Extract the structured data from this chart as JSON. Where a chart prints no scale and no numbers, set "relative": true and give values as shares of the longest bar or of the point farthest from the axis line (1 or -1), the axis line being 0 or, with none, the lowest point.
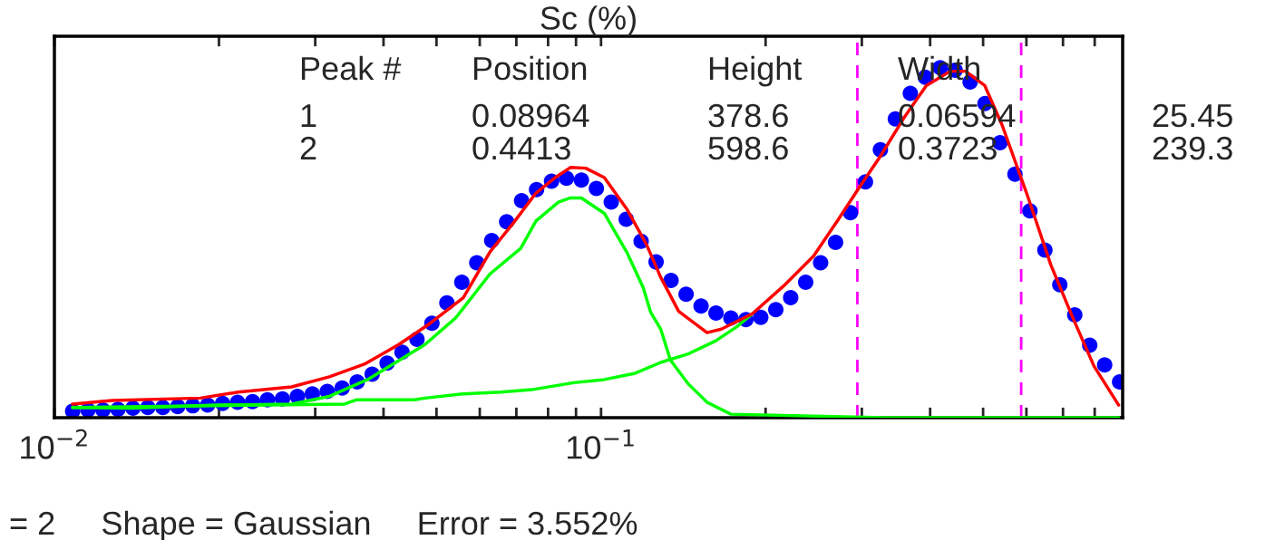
{
  "chart_data": {
    "type": "scatter",
    "title": "Sc (%)",
    "relative": true,
    "log": "x",
    "grid": false,
    "legend": false,
    "xlim": [
      0.01,
      0.9
    ],
    "xticks": [
      {
        "value": 0.01,
        "label": "10$^{−2}$"
      },
      {
        "value": 0.02,
        "label": null
      },
      {
        "value": 0.03,
        "label": null
      },
      {
        "value": 0.04,
        "label": null
      },
      {
        "value": 0.05,
        "label": null
      },
      {
        "value": 0.06,
        "label": null
      },
      {
        "value": 0.07,
        "label": null
      },
      {
        "value": 0.08,
        "label": null
      },
      {
        "value": 0.09,
        "label": null
      },
      {
        "value": 0.1,
        "label": "10$^{−1}$"
      },
      {
        "value": 0.2,
        "label": null
      },
      {
        "value": 0.3,
        "label": null
      },
      {
        "value": 0.4,
        "label": null
      },
      {
        "value": 0.5,
        "label": null
      },
      {
        "value": 0.6,
        "label": null
      },
      {
        "value": 0.7,
        "label": null
      },
      {
        "value": 0.8,
        "label": null
      }
    ],
    "series": [
      {
        "color": "#0000ff",
        "marker": "circle",
        "x": [
          0.0108,
          0.01152,
          0.01227,
          0.01307,
          0.01392,
          0.01482,
          0.01579,
          0.01681,
          0.01791,
          0.01907,
          0.02031,
          0.02163,
          0.02304,
          0.02453,
          0.02613,
          0.02783,
          0.02964,
          0.03156,
          0.03361,
          0.0358,
          0.03813,
          0.04061,
          0.04325,
          0.04606,
          0.04905,
          0.05224,
          0.05563,
          0.05925,
          0.0631,
          0.0672,
          0.07157,
          0.07622,
          0.08118,
          0.08645,
          0.09207,
          0.09806,
          0.1044,
          0.1112,
          0.1184,
          0.1261,
          0.1343,
          0.1431,
          0.1524,
          0.1623,
          0.1728,
          0.1841,
          0.196,
          0.2088,
          0.2223,
          0.2368,
          0.2522,
          0.2686,
          0.286,
          0.3046,
          0.3244,
          0.3455,
          0.368,
          0.3919,
          0.4173,
          0.4445,
          0.4734,
          0.5041,
          0.5369,
          0.5718,
          0.609,
          0.6486,
          0.6907,
          0.7356,
          0.7834,
          0.8343,
          0.8886
        ],
        "values": [
          0.019,
          0.022,
          0.022,
          0.024,
          0.027,
          0.029,
          0.029,
          0.032,
          0.034,
          0.036,
          0.041,
          0.044,
          0.046,
          0.051,
          0.054,
          0.061,
          0.068,
          0.075,
          0.085,
          0.102,
          0.124,
          0.156,
          0.187,
          0.224,
          0.27,
          0.328,
          0.387,
          0.443,
          0.506,
          0.56,
          0.62,
          0.652,
          0.676,
          0.684,
          0.679,
          0.655,
          0.616,
          0.567,
          0.504,
          0.445,
          0.392,
          0.353,
          0.319,
          0.299,
          0.285,
          0.28,
          0.287,
          0.309,
          0.343,
          0.387,
          0.443,
          0.501,
          0.586,
          0.674,
          0.766,
          0.854,
          0.927,
          0.973,
          1.0,
          0.993,
          0.959,
          0.898,
          0.786,
          0.696,
          0.591,
          0.479,
          0.38,
          0.294,
          0.207,
          0.151,
          0.102
        ]
      },
      {
        "type": "line",
        "color": "#00ff00",
        "x": [
          0.01079,
          0.01384,
          0.01972,
          0.02716,
          0.03184,
          0.03741,
          0.04764,
          0.0542,
          0.06266,
          0.07129,
          0.07603,
          0.08356,
          0.0879,
          0.09204,
          0.1014,
          0.1117,
          0.1194,
          0.1232,
          0.1286,
          0.1339,
          0.1443,
          0.1563,
          0.1728,
          0.33,
          0.885
        ],
        "values": [
          0.029,
          0.027,
          0.036,
          0.039,
          0.061,
          0.109,
          0.209,
          0.285,
          0.411,
          0.484,
          0.562,
          0.616,
          0.628,
          0.628,
          0.584,
          0.47,
          0.372,
          0.302,
          0.253,
          0.165,
          0.097,
          0.044,
          0.01,
          0.0,
          0.0
        ]
      },
      {
        "type": "line",
        "color": "#00ff00",
        "x": [
          0.01079,
          0.03396,
          0.03565,
          0.0455,
          0.04764,
          0.05598,
          0.06561,
          0.07464,
          0.08913,
          0.1014,
          0.1155,
          0.1286,
          0.1443,
          0.1619,
          0.1772,
          0.1892
        ],
        "values": [
          0.029,
          0.039,
          0.051,
          0.051,
          0.056,
          0.068,
          0.073,
          0.08,
          0.1,
          0.109,
          0.127,
          0.158,
          0.182,
          0.219,
          0.26,
          0.297
        ]
      },
      {
        "type": "line",
        "color": "#ff0000",
        "x": [
          0.01079,
          0.01276,
          0.01849,
          0.02168,
          0.02716,
          0.03184,
          0.0369,
          0.04266,
          0.04853,
          0.05598,
          0.06266,
          0.06902,
          0.07603,
          0.08241,
          0.0879,
          0.09376,
          0.1014,
          0.1117,
          0.121,
          0.1286,
          0.1387,
          0.1563,
          0.166,
          0.1892,
          0.2153,
          0.2449,
          0.271,
          0.2965,
          0.3243,
          0.3597,
          0.3936,
          0.4355,
          0.4645,
          0.5035,
          0.542,
          0.6026,
          0.6653,
          0.7289,
          0.7973,
          0.885
        ],
        "values": [
          0.039,
          0.049,
          0.056,
          0.073,
          0.088,
          0.117,
          0.153,
          0.209,
          0.268,
          0.343,
          0.474,
          0.555,
          0.642,
          0.686,
          0.715,
          0.713,
          0.686,
          0.594,
          0.496,
          0.401,
          0.304,
          0.243,
          0.253,
          0.297,
          0.375,
          0.462,
          0.564,
          0.657,
          0.747,
          0.861,
          0.949,
          0.99,
          0.99,
          0.949,
          0.835,
          0.635,
          0.436,
          0.287,
          0.148,
          0.036
        ]
      }
    ],
    "ref_lines": [
      {
        "axis": "x",
        "value": 0.2944,
        "color": "#ff00ff",
        "line_style": "dashed"
      },
      {
        "axis": "x",
        "value": 0.587,
        "color": "#ff00ff",
        "line_style": "dashed"
      }
    ],
    "annotations": [
      "Peak #",
      "Position",
      "Height",
      "Width",
      "1",
      "0.08964",
      "378.6",
      "0.06594",
      "25.45",
      "2",
      "0.4413",
      "598.6",
      "0.3723",
      "239.3",
      "= 2     Shape = Gaussian     Error = 3.552%"
    ]
  }
}
